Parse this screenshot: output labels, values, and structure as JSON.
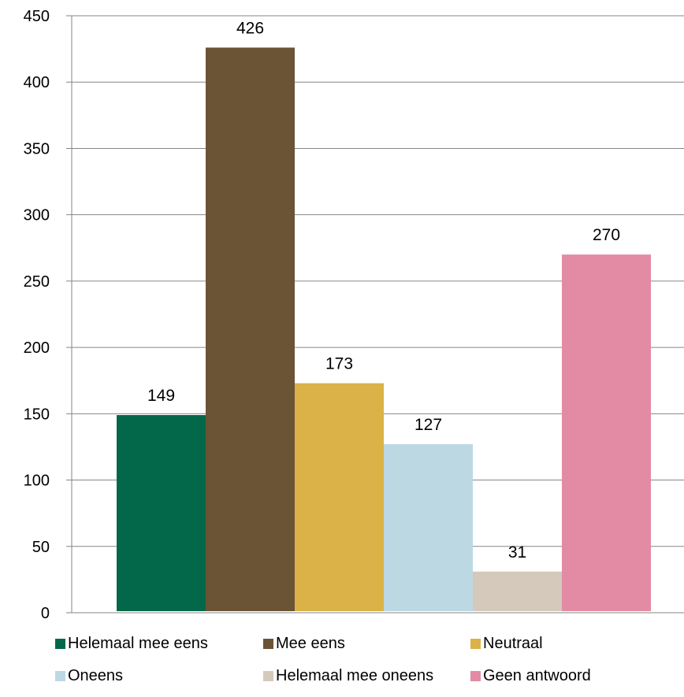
{
  "chart_data": {
    "type": "bar",
    "title": "",
    "xlabel": "",
    "ylabel": "",
    "ylim": [
      0,
      450
    ],
    "yticks": [
      0,
      50,
      100,
      150,
      200,
      250,
      300,
      350,
      400,
      450
    ],
    "grid": true,
    "legend_position": "bottom",
    "series": [
      {
        "name": "Helemaal mee eens",
        "value": 149,
        "color": "#03674a"
      },
      {
        "name": "Mee eens",
        "value": 426,
        "color": "#6b5335"
      },
      {
        "name": "Neutraal",
        "value": 173,
        "color": "#dbb247"
      },
      {
        "name": "Oneens",
        "value": 127,
        "color": "#bcd8e3"
      },
      {
        "name": "Helemaal mee oneens",
        "value": 31,
        "color": "#d4c9bb"
      },
      {
        "name": "Geen antwoord",
        "value": 270,
        "color": "#e38ba4"
      }
    ]
  }
}
